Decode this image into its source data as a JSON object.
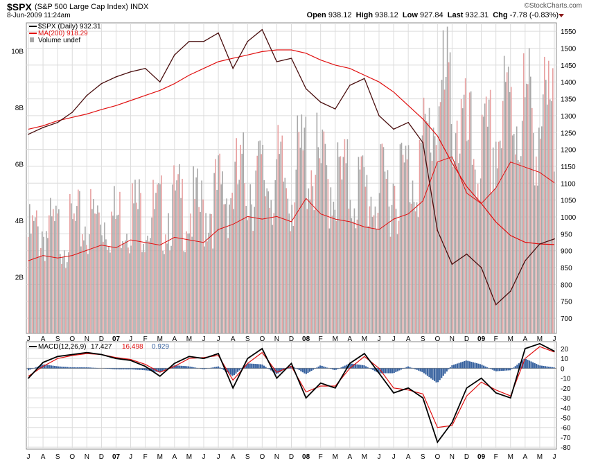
{
  "header": {
    "symbol": "$SPX",
    "description": "(S&P 500 Large Cap Index)",
    "exchange": "INDX",
    "datetime": "8-Jun-2009 11:24am",
    "credit": "©StockCharts.com",
    "open_label": "Open",
    "open": "938.12",
    "high_label": "High",
    "high": "938.12",
    "low_label": "Low",
    "low": "927.84",
    "last_label": "Last",
    "last": "932.31",
    "chg_label": "Chg",
    "chg": "-7.78 (-0.83%)"
  },
  "colors": {
    "price": "#4a0f0f",
    "ma": "#e01010",
    "vol_up": "#a8a8a8",
    "vol_down": "#e8a0a0",
    "macd": "#000000",
    "signal": "#e01010",
    "hist": "#3a64a0",
    "grid": "#dcdcdc"
  },
  "price_legend": {
    "price": "$SPX (Daily) 932.31",
    "ma": "MA(200) 918.29",
    "volume": "Volume undef"
  },
  "macd_legend": {
    "name": "MACD(12,26,9)",
    "macd": "17.427",
    "signal": "16.498",
    "hist": "0.929"
  },
  "x_axis": {
    "labels": [
      "J",
      "A",
      "S",
      "O",
      "N",
      "D",
      "07",
      "J",
      "F",
      "M",
      "A",
      "M",
      "J",
      "J",
      "A",
      "S",
      "O",
      "N",
      "D",
      "08",
      "F",
      "M",
      "A",
      "M",
      "J",
      "J",
      "A",
      "S",
      "O",
      "N",
      "D",
      "09",
      "F",
      "M",
      "A",
      "M",
      "J"
    ],
    "bold": [
      "07",
      "08",
      "09"
    ]
  },
  "chart_data": [
    {
      "type": "line",
      "title": "$SPX (S&P 500 Large Cap Index) Daily",
      "yaxis": "right",
      "ylim": [
        655,
        1575
      ],
      "yticks": [
        700,
        750,
        800,
        850,
        900,
        950,
        1000,
        1050,
        1100,
        1150,
        1200,
        1250,
        1300,
        1350,
        1400,
        1450,
        1500,
        1550
      ],
      "x_months": [
        "Jun-06",
        "Jul-06",
        "Aug-06",
        "Sep-06",
        "Oct-06",
        "Nov-06",
        "Dec-06",
        "Jan-07",
        "Feb-07",
        "Mar-07",
        "Apr-07",
        "May-07",
        "Jun-07",
        "Jul-07",
        "Aug-07",
        "Sep-07",
        "Oct-07",
        "Nov-07",
        "Dec-07",
        "Jan-08",
        "Feb-08",
        "Mar-08",
        "Apr-08",
        "May-08",
        "Jun-08",
        "Jul-08",
        "Aug-08",
        "Sep-08",
        "Oct-08",
        "Nov-08",
        "Dec-08",
        "Jan-09",
        "Feb-09",
        "Mar-09",
        "Apr-09",
        "May-09",
        "Jun-09"
      ],
      "series": [
        {
          "name": "$SPX (Daily)",
          "values": [
            1245,
            1265,
            1280,
            1310,
            1360,
            1395,
            1415,
            1430,
            1440,
            1400,
            1480,
            1520,
            1520,
            1545,
            1440,
            1520,
            1555,
            1460,
            1470,
            1380,
            1340,
            1320,
            1390,
            1410,
            1300,
            1260,
            1280,
            1220,
            960,
            860,
            890,
            850,
            740,
            780,
            870,
            920,
            935
          ]
        },
        {
          "name": "MA(200)",
          "values": [
            1260,
            1270,
            1285,
            1295,
            1305,
            1318,
            1330,
            1345,
            1360,
            1375,
            1395,
            1420,
            1440,
            1460,
            1470,
            1480,
            1490,
            1495,
            1495,
            1485,
            1465,
            1450,
            1440,
            1420,
            1400,
            1370,
            1330,
            1290,
            1240,
            1160,
            1090,
            1040,
            985,
            945,
            925,
            920,
            918
          ]
        }
      ]
    },
    {
      "type": "bar",
      "title": "Volume",
      "yaxis": "left",
      "ylim": [
        0,
        11000000000
      ],
      "ytick_labels": [
        "2B",
        "4B",
        "6B",
        "8B",
        "10B"
      ],
      "ytick_values": [
        2000000000,
        4000000000,
        6000000000,
        8000000000,
        10000000000
      ],
      "values": [
        2.8,
        3.0,
        2.9,
        3.0,
        3.2,
        3.4,
        3.3,
        3.6,
        3.5,
        3.4,
        3.7,
        3.6,
        3.5,
        4.0,
        4.2,
        4.5,
        4.4,
        4.5,
        4.3,
        5.2,
        4.6,
        4.4,
        4.3,
        4.1,
        4.0,
        4.4,
        4.6,
        5.1,
        6.6,
        6.8,
        5.4,
        5.0,
        5.6,
        6.6,
        6.4,
        6.2,
        5.8
      ],
      "values_unit": "billions"
    },
    {
      "type": "line",
      "title": "MACD(12,26,9)",
      "yaxis": "right",
      "ylim": [
        -82,
        27
      ],
      "yticks": [
        -80,
        -70,
        -60,
        -50,
        -40,
        -30,
        -20,
        -10,
        0,
        10,
        20
      ],
      "series": [
        {
          "name": "MACD",
          "values": [
            -10,
            6,
            12,
            14,
            16,
            14,
            10,
            8,
            2,
            -8,
            5,
            12,
            10,
            15,
            -20,
            10,
            20,
            -10,
            5,
            -30,
            -15,
            -20,
            5,
            15,
            -5,
            -25,
            -20,
            -30,
            -75,
            -55,
            -20,
            -10,
            -25,
            -30,
            20,
            25,
            17.4
          ]
        },
        {
          "name": "Signal",
          "values": [
            -8,
            2,
            10,
            13,
            15,
            14,
            11,
            9,
            4,
            -4,
            2,
            10,
            11,
            13,
            -12,
            5,
            16,
            -4,
            2,
            -24,
            -18,
            -18,
            0,
            12,
            0,
            -20,
            -22,
            -26,
            -60,
            -58,
            -28,
            -14,
            -22,
            -28,
            10,
            22,
            16.5
          ]
        },
        {
          "name": "Histogram",
          "values": [
            -2,
            4,
            2,
            1,
            1,
            0,
            -1,
            -1,
            -2,
            -4,
            3,
            2,
            -1,
            2,
            -8,
            5,
            4,
            -6,
            3,
            -6,
            3,
            -2,
            5,
            3,
            -5,
            -5,
            2,
            -4,
            -15,
            3,
            8,
            4,
            -3,
            -2,
            10,
            3,
            0.93
          ]
        }
      ]
    }
  ]
}
